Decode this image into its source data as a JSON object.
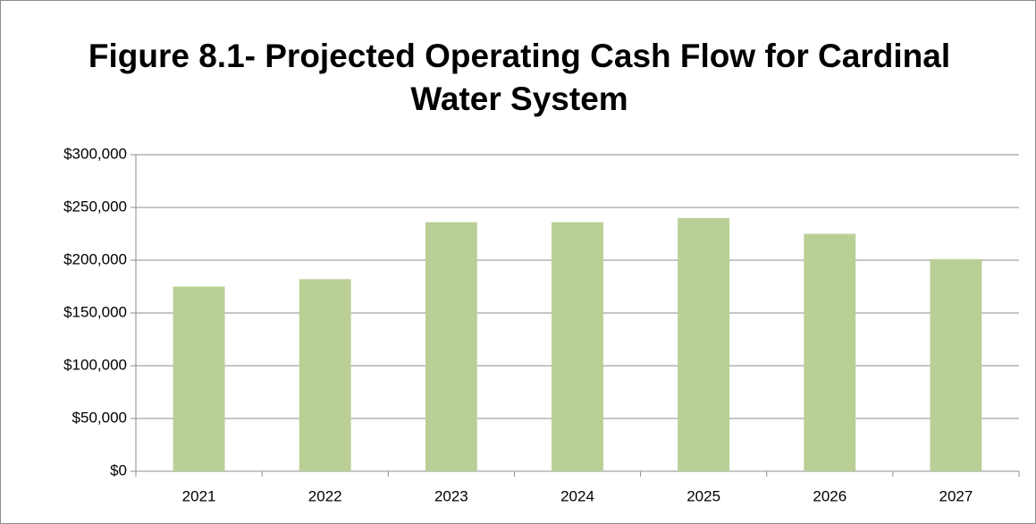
{
  "chart_data": {
    "type": "bar",
    "title": "Figure 8.1- Projected Operating Cash Flow for Cardinal Water System",
    "categories": [
      "2021",
      "2022",
      "2023",
      "2024",
      "2025",
      "2026",
      "2027"
    ],
    "values": [
      175000,
      182000,
      236000,
      236000,
      240000,
      225000,
      201000
    ],
    "color": "#b9cf96",
    "ylim": [
      0,
      300000
    ],
    "yticks": [
      {
        "value": 0,
        "label": "$0"
      },
      {
        "value": 50000,
        "label": "$50,000"
      },
      {
        "value": 100000,
        "label": "$100,000"
      },
      {
        "value": 150000,
        "label": "$150,000"
      },
      {
        "value": 200000,
        "label": "$200,000"
      },
      {
        "value": 250000,
        "label": "$250,000"
      },
      {
        "value": 300000,
        "label": "$300,000"
      }
    ],
    "grid": true
  }
}
